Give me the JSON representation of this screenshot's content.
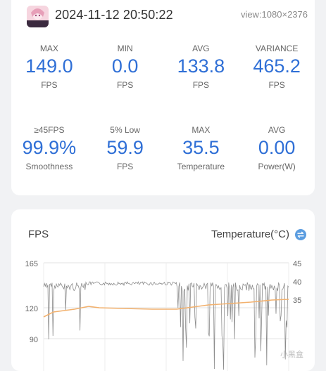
{
  "header": {
    "timestamp": "2024-11-12 20:50:22",
    "view": "view:1080×2376"
  },
  "stats_row1": [
    {
      "label": "MAX",
      "value": "149.0",
      "unit": "FPS"
    },
    {
      "label": "MIN",
      "value": "0.0",
      "unit": "FPS"
    },
    {
      "label": "AVG",
      "value": "133.8",
      "unit": "FPS"
    },
    {
      "label": "VARIANCE",
      "value": "465.2",
      "unit": "FPS"
    }
  ],
  "stats_row2": [
    {
      "label": "≥45FPS",
      "value": "99.9%",
      "unit": "Smoothness"
    },
    {
      "label": "5% Low",
      "value": "59.9",
      "unit": "FPS"
    },
    {
      "label": "MAX",
      "value": "35.5",
      "unit": "Temperature"
    },
    {
      "label": "AVG",
      "value": "0.00",
      "unit": "Power(W)"
    }
  ],
  "chart": {
    "fps_title": "FPS",
    "temp_title": "Temperature(°C)",
    "left_ticks": [
      "165",
      "120",
      "90"
    ],
    "right_ticks": [
      "45",
      "40",
      "35"
    ]
  },
  "colors": {
    "accent": "#2f6fd6",
    "fps_line": "#8c8c8c",
    "temp_line": "#f2b16e",
    "swap_icon": "#5b9de0"
  },
  "watermark": "小黑盒"
}
